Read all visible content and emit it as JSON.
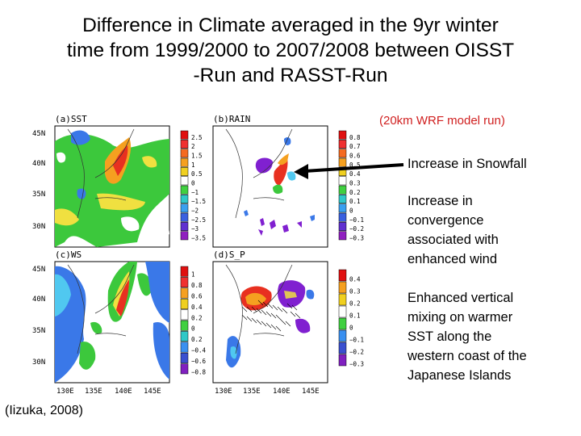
{
  "title": {
    "line1": "Difference in Climate averaged in the 9yr winter",
    "line2": "time from 1999/2000 to 2007/2008 between OISST",
    "line3": "-Run and RASST-Run"
  },
  "model_note": "(20km WRF model run)",
  "annotations": {
    "snowfall": "Increase in Snowfall",
    "convergence": [
      "Increase in",
      "convergence",
      "associated with",
      "enhanced wind"
    ],
    "mixing": [
      "Enhanced vertical",
      "mixing on warmer",
      "SST along the",
      "western coast of the",
      "Japanese Islands"
    ]
  },
  "credit": "(Iizuka, 2008)",
  "panels": {
    "sst": {
      "label": "(a)SST",
      "colorbar": [
        "2.5",
        "2",
        "1.5",
        "1",
        "0.5",
        "0",
        "−1",
        "−1.5",
        "−2",
        "−2.5",
        "−3",
        "−3.5"
      ]
    },
    "rain": {
      "label": "(b)RAIN",
      "colorbar": [
        "0.8",
        "0.7",
        "0.6",
        "0.5",
        "0.4",
        "0.3",
        "0.2",
        "0.1",
        "0",
        "−0.1",
        "−0.2",
        "−0.3"
      ]
    },
    "ws": {
      "label": "(c)WS",
      "colorbar": [
        "1",
        "0.8",
        "0.6",
        "0.4",
        "0.2",
        "0",
        "0.2",
        "−0.4",
        "−0.6",
        "−0.8"
      ]
    },
    "sp": {
      "label": "(d)S_P",
      "colorbar": [
        "0.4",
        "0.3",
        "0.2",
        "0.1",
        "0",
        "−0.1",
        "−0.2",
        "−0.3"
      ]
    }
  },
  "axes": {
    "lat": [
      "45N",
      "40N",
      "35N",
      "30N"
    ],
    "lon": [
      "130E",
      "135E",
      "140E",
      "145E"
    ]
  },
  "colors": {
    "ocean_green": "#3cc83c",
    "warm_red": "#e83020",
    "orange": "#f5a020",
    "yellow": "#f0e040",
    "blue": "#3a78e8",
    "light_blue": "#50c8f0",
    "purple": "#8020d0",
    "note_red": "#d02020"
  }
}
